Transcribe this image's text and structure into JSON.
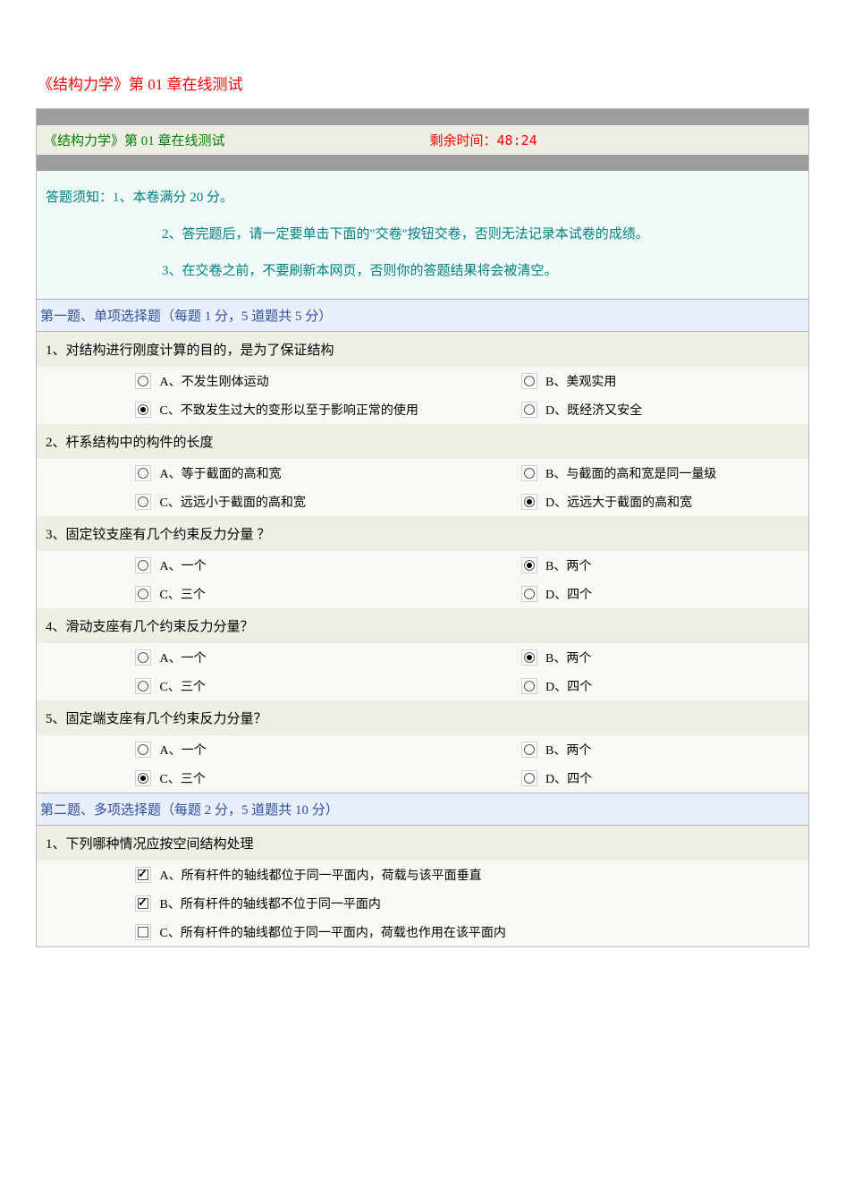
{
  "page_title": "《结构力学》第 01 章在线测试",
  "header": {
    "left": "《结构力学》第 01 章在线测试",
    "right_label_prefix": "剩余时间：",
    "right_time": "48:24"
  },
  "instructions": {
    "line1": "答题须知：1、本卷满分 20 分。",
    "line2": "2、答完题后，请一定要单击下面的\"交卷\"按钮交卷，否则无法记录本试卷的成绩。",
    "line3": "3、在交卷之前，不要刷新本网页，否则你的答题结果将会被清空。"
  },
  "section1": {
    "title": "第一题、单项选择题（每题 1 分，5 道题共 5 分）",
    "q1": {
      "text": "1、对结构进行刚度计算的目的，是为了保证结构",
      "a": "A、不发生刚体运动",
      "b": "B、美观实用",
      "c": "C、不致发生过大的变形以至于影响正常的使用",
      "d": "D、既经济又安全",
      "selected": "c"
    },
    "q2": {
      "text": "2、杆系结构中的构件的长度",
      "a": "A、等于截面的高和宽",
      "b": "B、与截面的高和宽是同一量级",
      "c": "C、远远小于截面的高和宽",
      "d": "D、远远大于截面的高和宽",
      "selected": "d"
    },
    "q3": {
      "text": "3、固定铰支座有几个约束反力分量 ？",
      "a": "A、一个",
      "b": "B、两个",
      "c": "C、三个",
      "d": "D、四个",
      "selected": "b"
    },
    "q4": {
      "text": "4、滑动支座有几个约束反力分量？",
      "a": "A、一个",
      "b": "B、两个",
      "c": "C、三个",
      "d": "D、四个",
      "selected": "b"
    },
    "q5": {
      "text": "5、固定端支座有几个约束反力分量？",
      "a": "A、一个",
      "b": "B、两个",
      "c": "C、三个",
      "d": "D、四个",
      "selected": "c"
    }
  },
  "section2": {
    "title": "第二题、多项选择题（每题 2 分，5 道题共 10 分）",
    "q1": {
      "text": "1、下列哪种情况应按空间结构处理",
      "a": "A、所有杆件的轴线都位于同一平面内，荷载与该平面垂直",
      "b": "B、所有杆件的轴线都不位于同一平面内",
      "c": "C、所有杆件的轴线都位于同一平面内，荷载也作用在该平面内",
      "checked": [
        "a",
        "b"
      ]
    }
  },
  "colors": {
    "title_red": "#ff0000",
    "header_green": "#008000",
    "teal": "#008080",
    "section_blue": "#3050a0",
    "gray_bar": "#9e9e9e",
    "header_bg": "#eeeee4",
    "instructions_bg": "#f0faf8",
    "section_bg": "#e8effa",
    "question_bg": "#eeeee4",
    "option_bg": "#f8f8f4"
  }
}
